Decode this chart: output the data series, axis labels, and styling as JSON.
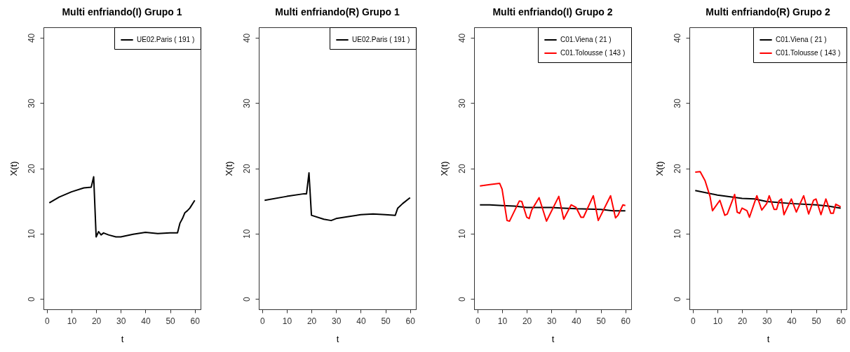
{
  "chart_data": [
    {
      "type": "line",
      "title": "Multi enfriando(I) Grupo 1",
      "xlabel": "t",
      "ylabel": "X(t)",
      "xlim": [
        -1.36,
        62.36
      ],
      "ylim": [
        -1.6,
        41.6
      ],
      "xticks": [
        0,
        10,
        20,
        30,
        40,
        50,
        60
      ],
      "yticks": [
        0,
        10,
        20,
        30,
        40
      ],
      "grid": false,
      "legend": "top right",
      "line_style": "solid",
      "marker": "none",
      "series": [
        {
          "name": "UE02.Paris ( 191 )",
          "color": "#000000",
          "x": [
            1,
            5,
            10,
            15,
            18,
            19,
            20,
            21,
            22,
            23,
            25,
            28,
            30,
            35,
            40,
            45,
            50,
            53,
            54,
            55,
            56,
            57,
            58,
            60
          ],
          "values": [
            14.7,
            15.6,
            16.4,
            17.0,
            17.1,
            18.7,
            9.5,
            10.3,
            9.8,
            10.1,
            9.8,
            9.5,
            9.5,
            9.9,
            10.2,
            10.0,
            10.1,
            10.1,
            11.6,
            12.3,
            13.2,
            13.5,
            13.9,
            15.1
          ]
        }
      ]
    },
    {
      "type": "line",
      "title": "Multi enfriando(R) Grupo 1",
      "xlabel": "t",
      "ylabel": "X(t)",
      "xlim": [
        -1.36,
        62.36
      ],
      "ylim": [
        -1.6,
        41.6
      ],
      "xticks": [
        0,
        10,
        20,
        30,
        40,
        50,
        60
      ],
      "yticks": [
        0,
        10,
        20,
        30,
        40
      ],
      "grid": false,
      "legend": "top right",
      "line_style": "solid",
      "marker": "none",
      "series": [
        {
          "name": "UE02.Paris ( 191 )",
          "color": "#000000",
          "x": [
            1,
            10,
            17,
            18,
            19,
            20,
            25,
            28,
            30,
            35,
            40,
            45,
            50,
            54,
            55,
            57,
            60
          ],
          "values": [
            15.1,
            15.7,
            16.1,
            16.1,
            19.3,
            12.8,
            12.2,
            12.0,
            12.3,
            12.6,
            12.9,
            13.0,
            12.9,
            12.8,
            13.9,
            14.6,
            15.5
          ]
        }
      ]
    },
    {
      "type": "line",
      "title": "Multi enfriando(I) Grupo 2",
      "xlabel": "t",
      "ylabel": "X(t)",
      "xlim": [
        -1.36,
        62.36
      ],
      "ylim": [
        -1.6,
        41.6
      ],
      "xticks": [
        0,
        10,
        20,
        30,
        40,
        50,
        60
      ],
      "yticks": [
        0,
        10,
        20,
        30,
        40
      ],
      "grid": false,
      "legend": "top right",
      "line_style": "solid",
      "marker": "none",
      "series": [
        {
          "name": "C01.Viena ( 21 )",
          "color": "#000000",
          "x": [
            1,
            5,
            10,
            15,
            20,
            30,
            35,
            40,
            50,
            55,
            60
          ],
          "values": [
            14.4,
            14.4,
            14.3,
            14.2,
            14.0,
            14.0,
            13.9,
            13.8,
            13.7,
            13.5,
            13.5
          ]
        },
        {
          "name": "C01.Tolousse ( 143 )",
          "color": "#ff0000",
          "x": [
            1,
            5,
            9,
            10,
            12,
            13,
            17,
            18,
            20,
            21,
            22,
            25,
            28,
            33,
            35,
            38,
            40,
            42,
            43,
            47,
            49,
            54,
            56,
            57,
            59,
            60
          ],
          "values": [
            17.3,
            17.5,
            17.7,
            16.8,
            12.0,
            11.9,
            15.0,
            14.9,
            12.5,
            12.3,
            13.6,
            15.5,
            11.9,
            15.7,
            12.2,
            14.4,
            14.0,
            12.5,
            12.5,
            15.8,
            12.0,
            15.8,
            12.4,
            12.8,
            14.4,
            14.3
          ]
        }
      ]
    },
    {
      "type": "line",
      "title": "Multi enfriando(R) Grupo 2",
      "xlabel": "t",
      "ylabel": "X(t)",
      "xlim": [
        -1.36,
        62.36
      ],
      "ylim": [
        -1.6,
        41.6
      ],
      "xticks": [
        0,
        10,
        20,
        30,
        40,
        50,
        60
      ],
      "yticks": [
        0,
        10,
        20,
        30,
        40
      ],
      "grid": false,
      "legend": "top right",
      "line_style": "solid",
      "marker": "none",
      "series": [
        {
          "name": "C01.Viena ( 21 )",
          "color": "#000000",
          "x": [
            1,
            10,
            20,
            25,
            30,
            40,
            50,
            55,
            60
          ],
          "values": [
            16.6,
            15.9,
            15.4,
            15.3,
            14.9,
            14.6,
            14.4,
            14.2,
            13.9
          ]
        },
        {
          "name": "C01.Tolousse ( 143 )",
          "color": "#ff0000",
          "x": [
            1,
            3,
            5,
            7,
            8,
            11,
            13,
            14,
            17,
            18,
            19,
            20,
            22,
            23,
            26,
            28,
            30,
            31,
            33,
            34,
            35,
            36,
            37,
            40,
            42,
            45,
            47,
            49,
            50,
            52,
            54,
            56,
            57,
            58,
            59,
            60
          ],
          "values": [
            19.4,
            19.5,
            18.1,
            15.7,
            13.5,
            15.1,
            12.8,
            13.0,
            16.0,
            13.3,
            13.1,
            13.9,
            13.5,
            12.5,
            15.8,
            13.6,
            14.6,
            15.8,
            13.7,
            13.7,
            15.0,
            15.3,
            12.9,
            15.3,
            13.3,
            15.8,
            13.0,
            15.1,
            15.3,
            12.9,
            15.3,
            13.1,
            13.1,
            14.5,
            14.3,
            14.1
          ]
        }
      ]
    }
  ]
}
